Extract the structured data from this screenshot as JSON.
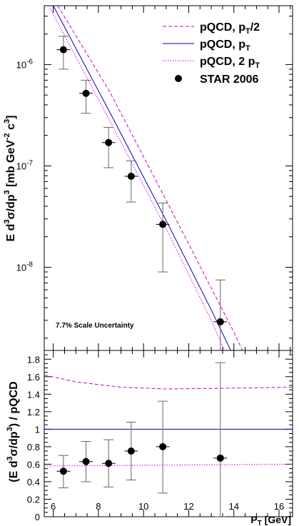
{
  "colors": {
    "theory": "#cc00cc",
    "central": "#0000bb",
    "data": "#000000",
    "errbar": "#666666"
  },
  "chart_data": [
    {
      "type": "line+scatter",
      "panel": "spectrum",
      "title": "",
      "xlabel": "",
      "ylabel": [
        "E d",
        "3",
        "σ/dp",
        "3",
        " [mb GeV",
        "-2",
        " c",
        "3",
        "]"
      ],
      "y_log": true,
      "xlim": [
        5.6,
        16.6
      ],
      "ylim_log10": [
        -8.82,
        -5.42
      ],
      "y_ticks": [
        {
          "value": 1e-06,
          "mant": "10",
          "exp": "-6"
        },
        {
          "value": 1e-07,
          "mant": "10",
          "exp": "-7"
        },
        {
          "value": 1e-08,
          "mant": "10",
          "exp": "-8"
        }
      ],
      "legend_position": "top-right",
      "legend": [
        {
          "style": "dashed",
          "parts": [
            "pQCD, p",
            "T",
            "/2"
          ]
        },
        {
          "style": "solid",
          "parts": [
            "pQCD, p",
            "T",
            ""
          ]
        },
        {
          "style": "dotted",
          "parts": [
            "pQCD, 2 p",
            "T",
            ""
          ]
        },
        {
          "style": "marker",
          "parts": [
            "STAR 2006"
          ]
        }
      ],
      "annotation": "7.7% Scale Uncertainty",
      "curves": [
        {
          "style": "dashed",
          "points": [
            [
              6.2,
              3.8e-06
            ],
            [
              8.5,
              5.4e-07
            ],
            [
              11,
              4.6e-08
            ],
            [
              14,
              2.3e-09
            ],
            [
              15.6,
              4e-10
            ]
          ]
        },
        {
          "style": "solid",
          "points": [
            [
              6.0,
              3.8e-06
            ],
            [
              8.5,
              3.4e-07
            ],
            [
              11,
              2.9e-08
            ],
            [
              13,
              3.8e-09
            ],
            [
              15.1,
              4e-10
            ]
          ]
        },
        {
          "style": "dotted",
          "points": [
            [
              5.8,
              3.8e-06
            ],
            [
              8.5,
              2.8e-07
            ],
            [
              11,
              2.4e-08
            ],
            [
              13,
              3e-09
            ],
            [
              14.7,
              4e-10
            ]
          ]
        }
      ],
      "points": [
        {
          "x": 6.45,
          "y": 1.4e-06,
          "xerr": 0.3,
          "ylo": 9e-07,
          "yhi": 1.9e-06
        },
        {
          "x": 7.45,
          "y": 5.2e-07,
          "xerr": 0.3,
          "ylo": 3.3e-07,
          "yhi": 7e-07
        },
        {
          "x": 8.45,
          "y": 1.7e-07,
          "xerr": 0.3,
          "ylo": 9.6e-08,
          "yhi": 2.4e-07
        },
        {
          "x": 9.45,
          "y": 7.9e-08,
          "xerr": 0.3,
          "ylo": 4.4e-08,
          "yhi": 1.12e-07
        },
        {
          "x": 10.85,
          "y": 2.65e-08,
          "xerr": 0.3,
          "ylo": 9e-09,
          "yhi": 4.3e-08
        },
        {
          "x": 13.4,
          "y": 2.9e-09,
          "xerr": 0.3,
          "ylo": 1e-12,
          "yhi": 7.5e-09
        }
      ]
    },
    {
      "type": "line+scatter",
      "panel": "ratio",
      "title": "",
      "xlabel": [
        "P",
        "T",
        " [GeV]"
      ],
      "ylabel": [
        "(E d",
        "3",
        "σ/dp",
        "3",
        ") / pQCD"
      ],
      "xlim": [
        5.6,
        16.6
      ],
      "ylim": [
        0,
        1.9
      ],
      "x_ticks": [
        6,
        8,
        10,
        12,
        14,
        16
      ],
      "y_ticks": [
        0,
        0.2,
        0.4,
        0.6,
        0.8,
        1,
        1.2,
        1.4,
        1.6,
        1.8
      ],
      "curves": [
        {
          "style": "dashed",
          "points": [
            [
              5.6,
              1.62
            ],
            [
              7,
              1.54
            ],
            [
              9,
              1.48
            ],
            [
              11,
              1.46
            ],
            [
              13,
              1.465
            ],
            [
              16.6,
              1.48
            ]
          ]
        },
        {
          "style": "solid",
          "points": [
            [
              5.6,
              1.0
            ],
            [
              16.6,
              1.0
            ]
          ]
        },
        {
          "style": "dotted",
          "points": [
            [
              5.6,
              0.58
            ],
            [
              16.6,
              0.6
            ]
          ]
        }
      ],
      "points": [
        {
          "x": 6.45,
          "y": 0.52,
          "xerr": 0.3,
          "ylo": 0.33,
          "yhi": 0.7
        },
        {
          "x": 7.45,
          "y": 0.63,
          "xerr": 0.3,
          "ylo": 0.4,
          "yhi": 0.86
        },
        {
          "x": 8.45,
          "y": 0.61,
          "xerr": 0.3,
          "ylo": 0.34,
          "yhi": 0.88
        },
        {
          "x": 9.45,
          "y": 0.75,
          "xerr": 0.3,
          "ylo": 0.42,
          "yhi": 1.08
        },
        {
          "x": 10.85,
          "y": 0.8,
          "xerr": 0.3,
          "ylo": 0.27,
          "yhi": 1.32
        },
        {
          "x": 13.4,
          "y": 0.67,
          "xerr": 0.3,
          "ylo": 0.0,
          "yhi": 1.76
        }
      ]
    }
  ]
}
